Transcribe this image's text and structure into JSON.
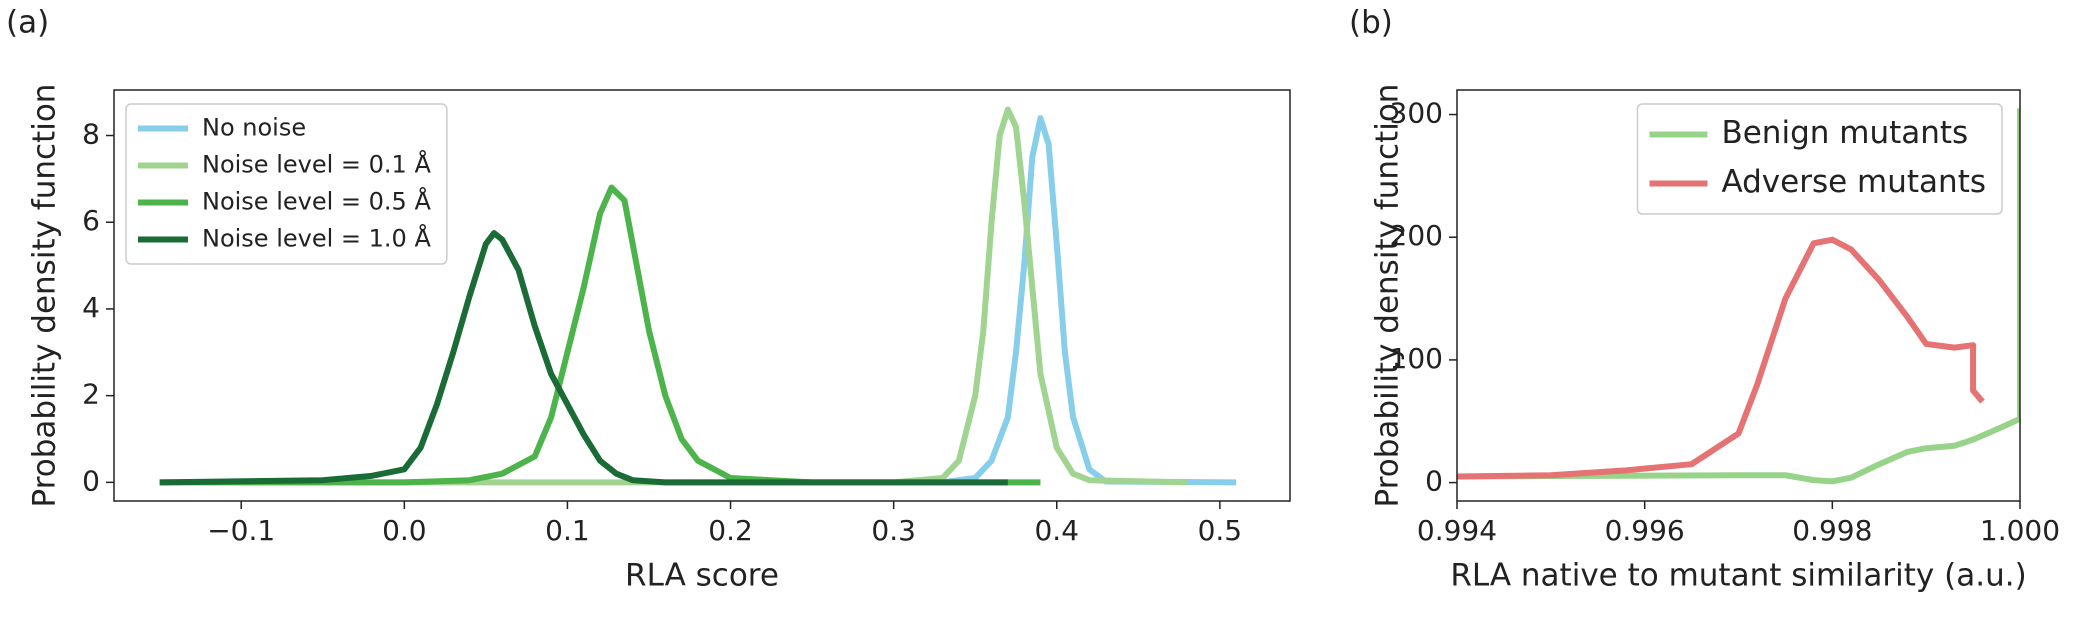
{
  "chart_data": [
    {
      "type": "line",
      "label": "(a)",
      "x_label": "RLA score",
      "y_label": "Probability density function",
      "xlim": [
        -0.178,
        0.543
      ],
      "ylim": [
        -0.43,
        9.05
      ],
      "xticks": [
        {
          "value": -0.1,
          "label": "−0.1"
        },
        {
          "value": 0,
          "label": "0.0"
        },
        0.1,
        0.2,
        0.3,
        0.4,
        0.5
      ],
      "yticks": [
        0,
        2,
        4,
        6,
        8
      ],
      "legend": "upper left",
      "series": [
        {
          "name": "No noise",
          "color": "#87ceeb",
          "x": [
            0.33,
            0.35,
            0.36,
            0.37,
            0.375,
            0.38,
            0.385,
            0.39,
            0.395,
            0.4,
            0.405,
            0.41,
            0.42,
            0.43,
            0.51
          ],
          "values": [
            0,
            0.1,
            0.5,
            1.5,
            3,
            5,
            7.5,
            8.4,
            7.8,
            5.5,
            3,
            1.5,
            0.3,
            0.02,
            0
          ]
        },
        {
          "name": "Noise level = 0.1 Å",
          "color": "#a1d490",
          "x": [
            -0.1,
            0.3,
            0.33,
            0.34,
            0.35,
            0.355,
            0.36,
            0.365,
            0.37,
            0.375,
            0.38,
            0.385,
            0.39,
            0.4,
            0.41,
            0.42,
            0.48
          ],
          "values": [
            0,
            0,
            0.1,
            0.5,
            2,
            3.5,
            6,
            8,
            8.6,
            8.2,
            6.5,
            4.5,
            2.5,
            0.8,
            0.2,
            0.05,
            0
          ]
        },
        {
          "name": "Noise level = 0.5 Å",
          "color": "#4cb44a",
          "x": [
            -0.15,
            0,
            0.04,
            0.06,
            0.08,
            0.09,
            0.1,
            0.11,
            0.12,
            0.127,
            0.135,
            0.14,
            0.15,
            0.16,
            0.17,
            0.18,
            0.2,
            0.25,
            0.39
          ],
          "values": [
            0,
            0,
            0.05,
            0.2,
            0.6,
            1.5,
            3,
            4.5,
            6.2,
            6.8,
            6.5,
            5.5,
            3.5,
            2,
            1,
            0.5,
            0.1,
            0,
            0
          ]
        },
        {
          "name": "Noise level = 1.0 Å",
          "color": "#1a6b35",
          "x": [
            -0.15,
            -0.05,
            -0.02,
            0,
            0.01,
            0.02,
            0.03,
            0.04,
            0.05,
            0.055,
            0.06,
            0.07,
            0.08,
            0.09,
            0.1,
            0.11,
            0.12,
            0.13,
            0.14,
            0.16,
            0.2,
            0.37
          ],
          "values": [
            0,
            0.05,
            0.15,
            0.3,
            0.8,
            1.8,
            3,
            4.3,
            5.5,
            5.75,
            5.6,
            4.9,
            3.6,
            2.5,
            1.8,
            1.1,
            0.5,
            0.2,
            0.05,
            0,
            0,
            0
          ]
        }
      ]
    },
    {
      "type": "line",
      "label": "(b)",
      "x_label": "RLA native to mutant similarity (a.u.)",
      "y_label": "Probability density function",
      "xlim": [
        0.994,
        1
      ],
      "ylim": [
        -15,
        320
      ],
      "xticks": [
        0.994,
        0.996,
        0.998,
        {
          "value": 1,
          "label": "1.000"
        }
      ],
      "yticks": [
        0,
        100,
        200,
        300
      ],
      "legend": "upper right",
      "series": [
        {
          "name": "Benign mutants",
          "color": "#98d38a",
          "x": [
            0.994,
            0.997,
            0.9975,
            0.9978,
            0.998,
            0.9982,
            0.9985,
            0.9988,
            0.999,
            0.9993,
            0.9995,
            0.9998,
            1,
            1
          ],
          "values": [
            5,
            6,
            6,
            2,
            1,
            4,
            15,
            25,
            28,
            30,
            35,
            45,
            52,
            305
          ]
        },
        {
          "name": "Adverse mutants",
          "color": "#e57373",
          "x": [
            0.994,
            0.995,
            0.9958,
            0.9965,
            0.997,
            0.9972,
            0.9975,
            0.9977,
            0.9978,
            0.998,
            0.9982,
            0.9985,
            0.9988,
            0.999,
            0.9993,
            0.9995,
            0.9995,
            0.9996
          ],
          "values": [
            5,
            6,
            10,
            15,
            40,
            80,
            150,
            180,
            195,
            198,
            190,
            165,
            135,
            113,
            110,
            112,
            75,
            66
          ]
        }
      ]
    }
  ]
}
